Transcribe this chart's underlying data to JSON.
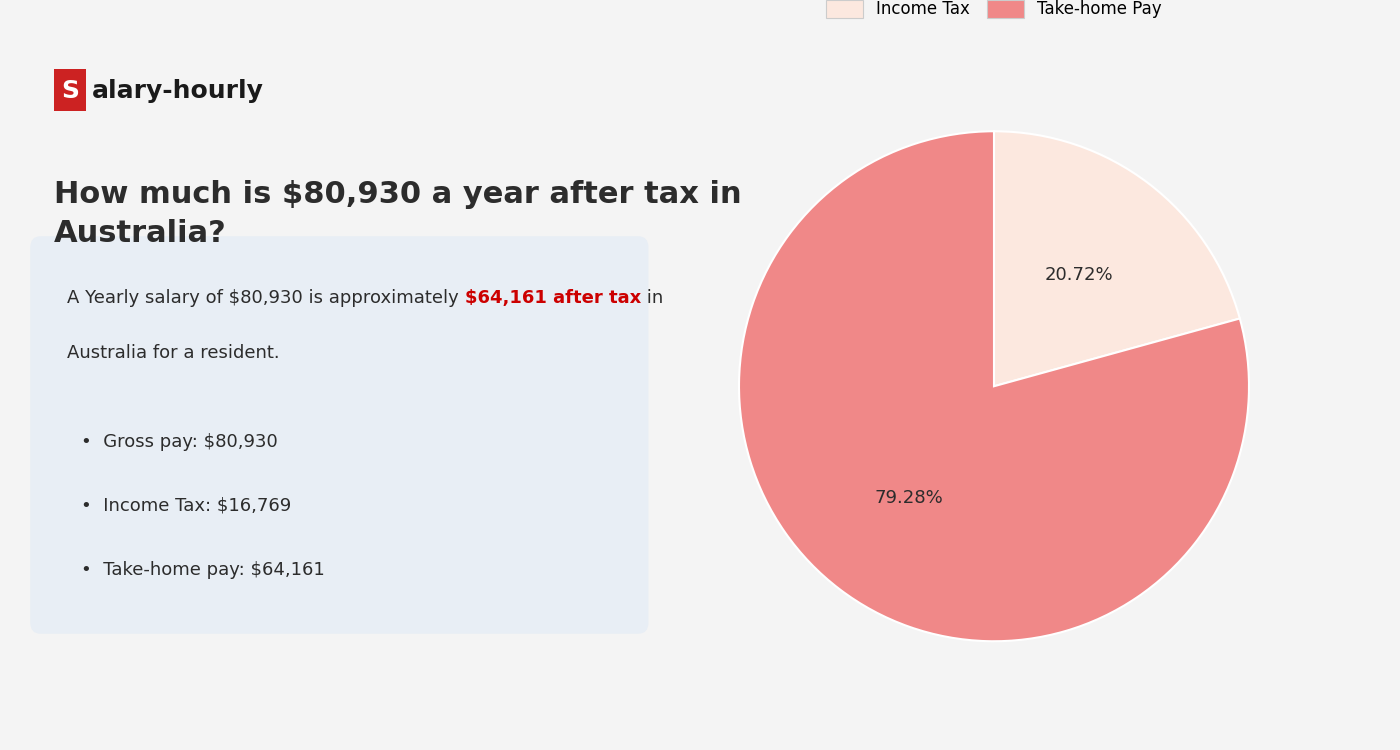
{
  "background_color": "#f4f4f4",
  "logo_s_bg": "#cc2222",
  "logo_s_color": "#ffffff",
  "logo_font_color": "#1a1a1a",
  "heading": "How much is $80,930 a year after tax in\nAustralia?",
  "heading_color": "#2c2c2c",
  "heading_fontsize": 22,
  "info_box_bg": "#e8eef5",
  "info_line1_normal": "A Yearly salary of $80,930 is approximately ",
  "info_line1_highlight": "$64,161 after tax",
  "info_line1_end": " in",
  "info_line2": "Australia for a resident.",
  "info_highlight_color": "#cc0000",
  "info_normal_color": "#2c2c2c",
  "bullet_items": [
    "Gross pay: $80,930",
    "Income Tax: $16,769",
    "Take-home pay: $64,161"
  ],
  "pie_values": [
    20.72,
    79.28
  ],
  "pie_labels": [
    "Income Tax",
    "Take-home Pay"
  ],
  "pie_colors": [
    "#fce8df",
    "#f08888"
  ],
  "pie_pct_income_tax": "20.72%",
  "pie_pct_takehome": "79.28%",
  "pie_startangle": 90,
  "font_size_body": 13,
  "font_size_bullet": 13,
  "font_size_logo": 18,
  "font_size_legend": 12,
  "font_size_pct": 13
}
